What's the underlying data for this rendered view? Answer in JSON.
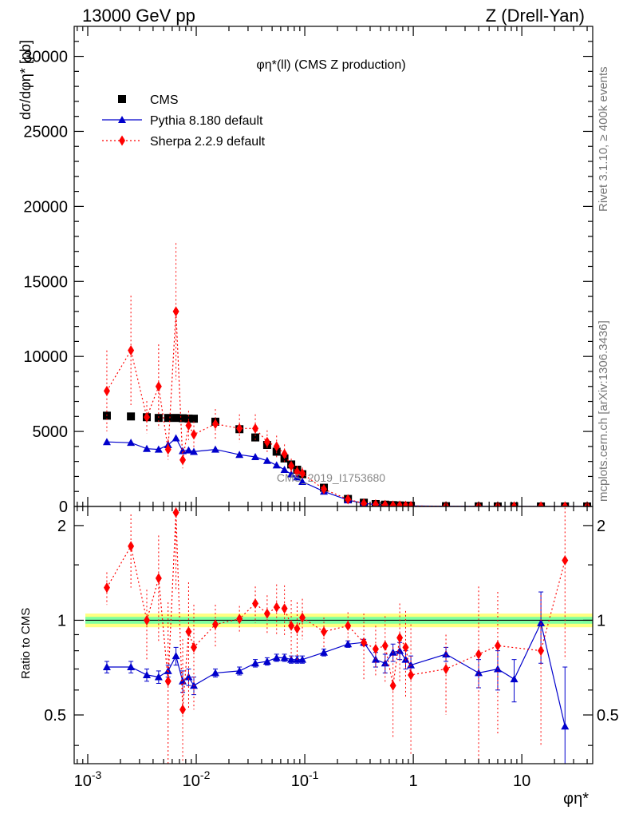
{
  "header": {
    "left": "13000 GeV pp",
    "right": "Z (Drell-Yan)"
  },
  "side_labels": {
    "rivet": "Rivet 3.1.10, ≥ 400k events",
    "source": "mcplots.cern.ch [arXiv:1306.3436]"
  },
  "colors": {
    "cms": "#000000",
    "pythia": "#0000cc",
    "sherpa": "#ff0000",
    "band_inner": "#7fffa0",
    "band_outer": "#ffff80"
  },
  "chart_data": [
    {
      "type": "scatter",
      "title": "φη*(ll) (CMS Z production)",
      "watermark": "CMS_2019_I1753680",
      "ylabel": "dσ/dφη* [pb]",
      "xscale": "log",
      "xlim": [
        0.00075,
        45
      ],
      "ylim": [
        0,
        32000
      ],
      "yticks": [
        0,
        5000,
        10000,
        15000,
        20000,
        25000,
        30000
      ],
      "ytick_labels": [
        "0",
        "5000",
        "10000",
        "15000",
        "20000",
        "25000",
        "30000"
      ],
      "legend": {
        "placement": "top-left",
        "entries": [
          "CMS",
          "Pythia 8.180 default",
          "Sherpa 2.2.9 default"
        ]
      },
      "series": [
        {
          "name": "CMS",
          "marker": "square",
          "x": [
            0.0015,
            0.0025,
            0.0035,
            0.0045,
            0.0055,
            0.0065,
            0.0075,
            0.0085,
            0.0095,
            0.015,
            0.025,
            0.035,
            0.045,
            0.055,
            0.065,
            0.075,
            0.085,
            0.095,
            0.15,
            0.25,
            0.35,
            0.45,
            0.55,
            0.65,
            0.75,
            0.85,
            0.95,
            2,
            4,
            6,
            8.5,
            15,
            25,
            40
          ],
          "y": [
            6050,
            6000,
            5950,
            5900,
            5900,
            5900,
            5880,
            5860,
            5850,
            5650,
            5150,
            4600,
            4100,
            3650,
            3200,
            2800,
            2450,
            2150,
            1250,
            500,
            250,
            160,
            120,
            90,
            70,
            55,
            45,
            18,
            6,
            3,
            2,
            1,
            0.5,
            0.2
          ]
        },
        {
          "name": "Pythia 8.180 default",
          "marker": "triangle",
          "x": [
            0.0015,
            0.0025,
            0.0035,
            0.0045,
            0.0055,
            0.0065,
            0.0075,
            0.0085,
            0.0095,
            0.015,
            0.025,
            0.035,
            0.045,
            0.055,
            0.065,
            0.075,
            0.085,
            0.095,
            0.15,
            0.25,
            0.35,
            0.45,
            0.55,
            0.65,
            0.75,
            0.85,
            0.95,
            2,
            4,
            6,
            8.5,
            15,
            25,
            40
          ],
          "y": [
            4300,
            4250,
            3850,
            3800,
            4100,
            4550,
            3700,
            3750,
            3650,
            3800,
            3450,
            3300,
            3050,
            2750,
            2450,
            2150,
            1950,
            1650,
            1000,
            420,
            210,
            130,
            95,
            70,
            55,
            45,
            35,
            14,
            4.5,
            2.2,
            1.4,
            1,
            0.3,
            0.1
          ]
        },
        {
          "name": "Sherpa 2.2.9 default",
          "marker": "diamond",
          "x": [
            0.0015,
            0.0025,
            0.0035,
            0.0045,
            0.0055,
            0.0065,
            0.0075,
            0.0085,
            0.0095,
            0.015,
            0.025,
            0.035,
            0.045,
            0.055,
            0.065,
            0.075,
            0.085,
            0.095,
            0.15,
            0.25,
            0.35,
            0.45,
            0.55,
            0.65,
            0.75,
            0.85,
            0.95,
            2,
            4,
            6,
            8.5,
            15,
            25,
            40
          ],
          "y": [
            7700,
            10400,
            5950,
            8000,
            3800,
            13000,
            3100,
            5400,
            4800,
            5500,
            5200,
            5200,
            4300,
            4000,
            3500,
            2700,
            2300,
            2200,
            1150,
            480,
            200,
            130,
            100,
            60,
            60,
            45,
            31,
            13,
            4.7,
            2.5,
            1.5,
            0.8,
            0.8,
            0.3
          ]
        }
      ]
    },
    {
      "type": "line",
      "ylabel": "Ratio to CMS",
      "xlabel": "φη*",
      "xscale": "log",
      "xlim": [
        0.00075,
        45
      ],
      "ylim": [
        0.35,
        2.3
      ],
      "yticks": [
        0.5,
        1,
        2
      ],
      "ytick_labels": [
        "0.5",
        "1",
        "2"
      ],
      "xticks": [
        0.001,
        0.01,
        0.1,
        1,
        10
      ],
      "xtick_labels": [
        "10^-3",
        "10^-2",
        "10^-1",
        "1",
        "10"
      ],
      "reference_band": {
        "center": 1.0,
        "inner": [
          0.975,
          1.025
        ],
        "outer": [
          0.95,
          1.05
        ]
      },
      "series": [
        {
          "name": "Pythia 8.180 default",
          "x": [
            0.0015,
            0.0025,
            0.0035,
            0.0045,
            0.0055,
            0.0065,
            0.0075,
            0.0085,
            0.0095,
            0.015,
            0.025,
            0.035,
            0.045,
            0.055,
            0.065,
            0.075,
            0.085,
            0.095,
            0.15,
            0.25,
            0.35,
            0.45,
            0.55,
            0.65,
            0.75,
            0.85,
            0.95,
            2,
            4,
            6,
            8.5,
            15,
            25
          ],
          "y": [
            0.71,
            0.71,
            0.67,
            0.66,
            0.69,
            0.77,
            0.64,
            0.66,
            0.62,
            0.68,
            0.69,
            0.73,
            0.74,
            0.76,
            0.76,
            0.75,
            0.75,
            0.75,
            0.79,
            0.84,
            0.85,
            0.75,
            0.73,
            0.79,
            0.8,
            0.75,
            0.72,
            0.78,
            0.68,
            0.7,
            0.65,
            0.98,
            0.46
          ],
          "err": [
            0.03,
            0.03,
            0.03,
            0.03,
            0.03,
            0.05,
            0.05,
            0.04,
            0.04,
            0.02,
            0.02,
            0.02,
            0.02,
            0.02,
            0.02,
            0.02,
            0.02,
            0.02,
            0.02,
            0.02,
            0.02,
            0.04,
            0.05,
            0.05,
            0.05,
            0.05,
            0.05,
            0.04,
            0.07,
            0.1,
            0.1,
            0.25,
            0.25
          ]
        },
        {
          "name": "Sherpa 2.2.9 default",
          "x": [
            0.0015,
            0.0025,
            0.0035,
            0.0045,
            0.0055,
            0.0065,
            0.0075,
            0.0085,
            0.0095,
            0.015,
            0.025,
            0.035,
            0.045,
            0.055,
            0.065,
            0.075,
            0.085,
            0.095,
            0.15,
            0.25,
            0.35,
            0.45,
            0.55,
            0.65,
            0.75,
            0.85,
            0.95,
            2,
            4,
            6,
            15,
            25
          ],
          "y": [
            1.27,
            1.72,
            1.0,
            1.36,
            0.64,
            2.2,
            0.52,
            0.92,
            0.82,
            0.97,
            1.01,
            1.13,
            1.05,
            1.1,
            1.09,
            0.96,
            0.94,
            1.02,
            0.92,
            0.96,
            0.85,
            0.81,
            0.83,
            0.62,
            0.88,
            0.82,
            0.67,
            0.7,
            0.78,
            0.83,
            0.8,
            1.55
          ],
          "err": [
            0.15,
            0.45,
            0.25,
            0.5,
            0.5,
            0.95,
            0.35,
            0.4,
            0.3,
            0.15,
            0.1,
            0.15,
            0.15,
            0.2,
            0.2,
            0.2,
            0.2,
            0.15,
            0.1,
            0.1,
            0.2,
            0.15,
            0.2,
            0.2,
            0.25,
            0.25,
            0.3,
            0.2,
            0.5,
            0.4,
            0.4,
            0.8
          ]
        }
      ]
    }
  ]
}
